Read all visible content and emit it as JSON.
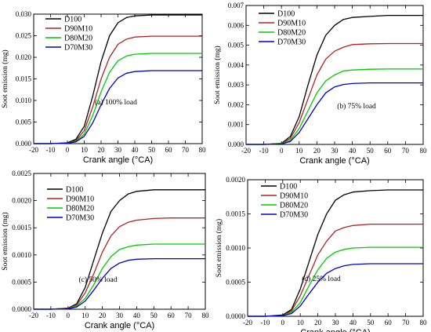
{
  "chart_data": [
    {
      "type": "line",
      "annotation": "(a) 100% load",
      "xlabel": "Crank angle (°CA)",
      "ylabel": "Soot emission (mg)",
      "xlim": [
        -20,
        80
      ],
      "ylim": [
        0,
        0.03
      ],
      "xticks": [
        "-20",
        "-10",
        "0",
        "10",
        "20",
        "30",
        "40",
        "50",
        "60",
        "70",
        "80"
      ],
      "yticks": [
        "0.000",
        "0.005",
        "0.010",
        "0.015",
        "0.020",
        "0.025",
        "0.030"
      ],
      "legend_position": "top-left",
      "x": [
        -20,
        -10,
        0,
        5,
        10,
        15,
        20,
        25,
        30,
        35,
        40,
        50,
        60,
        70,
        80
      ],
      "series": [
        {
          "name": "D100",
          "color": "#000000",
          "values": [
            0,
            0,
            0.0002,
            0.001,
            0.004,
            0.011,
            0.019,
            0.025,
            0.028,
            0.0292,
            0.0296,
            0.0298,
            0.0298,
            0.0298,
            0.0298
          ]
        },
        {
          "name": "D90M10",
          "color": "#b22222",
          "values": [
            0,
            0,
            0.0001,
            0.0007,
            0.003,
            0.0085,
            0.015,
            0.02,
            0.023,
            0.0242,
            0.0247,
            0.0249,
            0.0249,
            0.0249,
            0.0249
          ]
        },
        {
          "name": "D80M20",
          "color": "#00cc00",
          "values": [
            0,
            0,
            0.0001,
            0.0005,
            0.0022,
            0.0065,
            0.012,
            0.0165,
            0.0192,
            0.0203,
            0.0207,
            0.0209,
            0.0209,
            0.0209,
            0.0209
          ]
        },
        {
          "name": "D70M30",
          "color": "#0000cc",
          "values": [
            0,
            0,
            0.0001,
            0.0004,
            0.0017,
            0.0048,
            0.009,
            0.0128,
            0.0152,
            0.0163,
            0.0167,
            0.0169,
            0.0169,
            0.0169,
            0.0169
          ]
        }
      ]
    },
    {
      "type": "line",
      "annotation": "(b) 75% load",
      "xlabel": "Crank angle (°CA)",
      "ylabel": "Soot emission (mg)",
      "xlim": [
        -20,
        80
      ],
      "ylim": [
        0,
        0.007
      ],
      "xticks": [
        "-20",
        "-10",
        "0",
        "10",
        "20",
        "30",
        "40",
        "50",
        "60",
        "70",
        "80"
      ],
      "yticks": [
        "0.000",
        "0.001",
        "0.002",
        "0.003",
        "0.004",
        "0.005",
        "0.006",
        "0.007"
      ],
      "legend_position": "top-left",
      "x": [
        -20,
        -10,
        0,
        5,
        10,
        15,
        20,
        25,
        30,
        35,
        40,
        50,
        60,
        70,
        80
      ],
      "series": [
        {
          "name": "D100",
          "color": "#000000",
          "values": [
            0,
            0,
            5e-05,
            0.0004,
            0.0014,
            0.003,
            0.0045,
            0.0055,
            0.006,
            0.0063,
            0.0064,
            0.00645,
            0.0065,
            0.0065,
            0.0065
          ]
        },
        {
          "name": "D90M10",
          "color": "#b22222",
          "values": [
            0,
            0,
            4e-05,
            0.0003,
            0.0011,
            0.0023,
            0.0035,
            0.0043,
            0.0047,
            0.0049,
            0.00503,
            0.00507,
            0.00508,
            0.00508,
            0.00508
          ]
        },
        {
          "name": "D80M20",
          "color": "#00cc00",
          "values": [
            0,
            0,
            3e-05,
            0.0002,
            0.0008,
            0.0017,
            0.0026,
            0.0032,
            0.0035,
            0.0037,
            0.00375,
            0.00379,
            0.0038,
            0.0038,
            0.0038
          ]
        },
        {
          "name": "D70M30",
          "color": "#0000cc",
          "values": [
            0,
            0,
            2e-05,
            0.00015,
            0.0006,
            0.0013,
            0.002,
            0.0026,
            0.0029,
            0.00302,
            0.00307,
            0.0031,
            0.0031,
            0.0031,
            0.0031
          ]
        }
      ]
    },
    {
      "type": "line",
      "annotation": "(c) 50% load",
      "xlabel": "Crank angle (°CA)",
      "ylabel": "Soot emission (mg)",
      "xlim": [
        -20,
        80
      ],
      "ylim": [
        0,
        0.0025
      ],
      "xticks": [
        "-20",
        "-10",
        "0",
        "10",
        "20",
        "30",
        "40",
        "50",
        "60",
        "70",
        "80"
      ],
      "yticks": [
        "0.0000",
        "0.0005",
        "0.0010",
        "0.0015",
        "0.0020",
        "0.0025"
      ],
      "legend_position": "top-left",
      "x": [
        -20,
        -10,
        0,
        5,
        10,
        15,
        20,
        25,
        30,
        35,
        40,
        50,
        60,
        70,
        80
      ],
      "series": [
        {
          "name": "D100",
          "color": "#000000",
          "values": [
            0,
            0,
            2e-05,
            0.0001,
            0.0004,
            0.0009,
            0.0014,
            0.0018,
            0.002,
            0.00212,
            0.00217,
            0.0022,
            0.0022,
            0.0022,
            0.0022
          ]
        },
        {
          "name": "D90M10",
          "color": "#b22222",
          "values": [
            0,
            0,
            2e-05,
            8e-05,
            0.0003,
            0.00065,
            0.00105,
            0.00135,
            0.00152,
            0.0016,
            0.00164,
            0.00167,
            0.00168,
            0.00168,
            0.00168
          ]
        },
        {
          "name": "D80M20",
          "color": "#00cc00",
          "values": [
            0,
            0,
            1e-05,
            6e-05,
            0.0002,
            0.00045,
            0.00075,
            0.00097,
            0.0011,
            0.00115,
            0.00118,
            0.0012,
            0.0012,
            0.0012,
            0.0012
          ]
        },
        {
          "name": "D70M30",
          "color": "#0000cc",
          "values": [
            0,
            0,
            1e-05,
            4e-05,
            0.00015,
            0.00035,
            0.00057,
            0.00075,
            0.00085,
            0.0009,
            0.00092,
            0.00093,
            0.00093,
            0.00093,
            0.00093
          ]
        }
      ]
    },
    {
      "type": "line",
      "annotation": "(d) 25% load",
      "xlabel": "Crank angle (°CA)",
      "ylabel": "Soot emission (mg)",
      "xlim": [
        -20,
        80
      ],
      "ylim": [
        0,
        0.002
      ],
      "xticks": [
        "-20",
        "-10",
        "0",
        "10",
        "20",
        "30",
        "40",
        "50",
        "60",
        "70",
        "80"
      ],
      "yticks": [
        "0.0000",
        "0.0005",
        "0.0010",
        "0.0015",
        "0.0020"
      ],
      "legend_position": "top-left",
      "x": [
        -20,
        -10,
        0,
        5,
        10,
        15,
        20,
        25,
        30,
        35,
        40,
        50,
        60,
        70,
        80
      ],
      "series": [
        {
          "name": "D100",
          "color": "#000000",
          "values": [
            0,
            0,
            2e-05,
            0.0001,
            0.0004,
            0.0008,
            0.0012,
            0.0015,
            0.0017,
            0.00178,
            0.00182,
            0.00184,
            0.00185,
            0.00185,
            0.00185
          ]
        },
        {
          "name": "D90M10",
          "color": "#b22222",
          "values": [
            0,
            0,
            1e-05,
            8e-05,
            0.0003,
            0.0006,
            0.0009,
            0.0011,
            0.00125,
            0.0013,
            0.00133,
            0.00135,
            0.00135,
            0.00135,
            0.00135
          ]
        },
        {
          "name": "D80M20",
          "color": "#00cc00",
          "values": [
            0,
            0,
            1e-05,
            6e-05,
            0.0002,
            0.00045,
            0.00068,
            0.00085,
            0.00094,
            0.00098,
            0.001,
            0.00101,
            0.00101,
            0.00101,
            0.00101
          ]
        },
        {
          "name": "D70M30",
          "color": "#0000cc",
          "values": [
            0,
            0,
            1e-05,
            4e-05,
            0.00015,
            0.00033,
            0.0005,
            0.00063,
            0.0007,
            0.00074,
            0.00076,
            0.00077,
            0.00077,
            0.00077,
            0.00077
          ]
        }
      ]
    }
  ]
}
